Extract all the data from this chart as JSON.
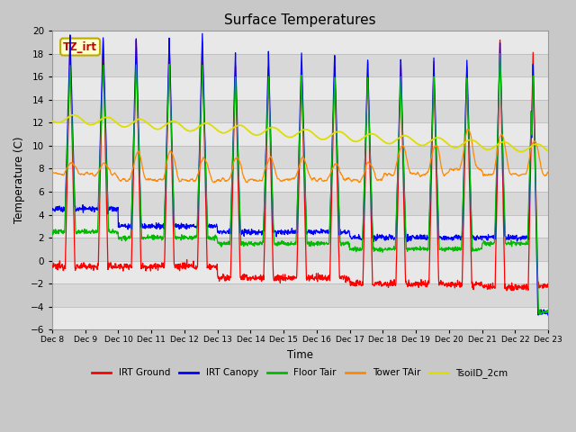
{
  "title": "Surface Temperatures",
  "xlabel": "Time",
  "ylabel": "Temperature (C)",
  "ylim": [
    -6,
    20
  ],
  "y_ticks": [
    -6,
    -4,
    -2,
    0,
    2,
    4,
    6,
    8,
    10,
    12,
    14,
    16,
    18,
    20
  ],
  "x_tick_labels": [
    "Dec 8",
    "Dec 9",
    "Dec 10",
    "Dec 11",
    "Dec 12",
    "Dec 13",
    "Dec 14",
    "Dec 15",
    "Dec 16",
    "Dec 17",
    "Dec 18",
    "Dec 19",
    "Dec 20",
    "Dec 21",
    "Dec 22",
    "Dec 23"
  ],
  "x_tick_positions": [
    0,
    24,
    48,
    72,
    96,
    120,
    144,
    168,
    192,
    216,
    240,
    264,
    288,
    312,
    336,
    360
  ],
  "series": {
    "IRT_Ground": {
      "color": "#ff0000",
      "label": "IRT Ground"
    },
    "IRT_Canopy": {
      "color": "#0000ff",
      "label": "IRT Canopy"
    },
    "Floor_Tair": {
      "color": "#00bb00",
      "label": "Floor Tair"
    },
    "Tower_TAir": {
      "color": "#ff8800",
      "label": "Tower TAir"
    },
    "TsoilD_2cm": {
      "color": "#dddd00",
      "label": "TsoilD_2cm"
    }
  },
  "legend_labels": [
    "IRT Ground",
    "IRT Canopy",
    "Floor Tair",
    "Tower TAir",
    "TsoilD_2cm"
  ],
  "legend_colors": [
    "#ff0000",
    "#0000ff",
    "#00bb00",
    "#ff8800",
    "#dddd00"
  ],
  "annotation_text": "TZ_irt",
  "annotation_bg": "#ffffcc",
  "annotation_border": "#bbaa00",
  "annotation_text_color": "#cc0000",
  "fig_bg_color": "#c8c8c8",
  "band_colors": [
    "#e8e8e8",
    "#d8d8d8"
  ]
}
